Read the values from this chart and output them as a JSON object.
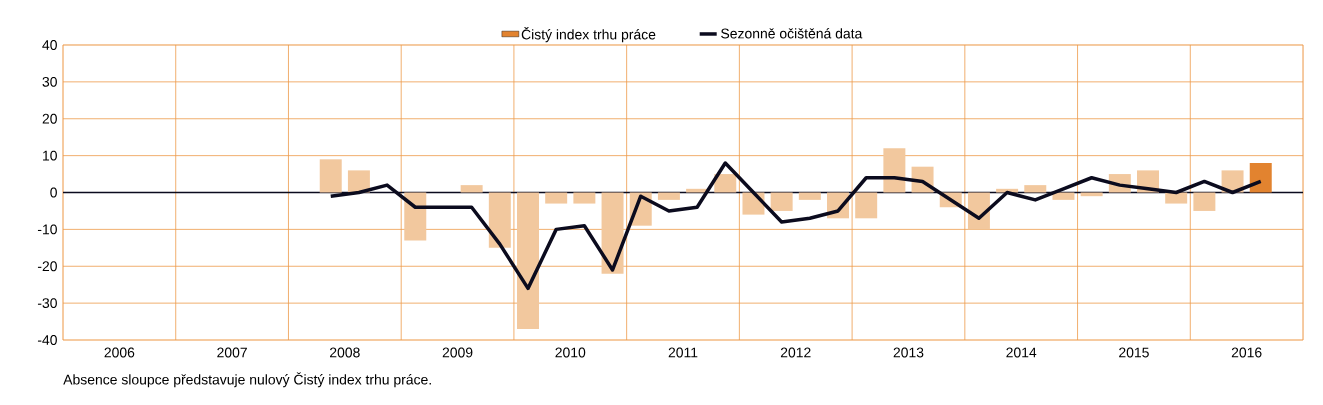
{
  "chart_data": {
    "type": "bar",
    "x": [
      2008.375,
      2008.625,
      2008.875,
      2009.125,
      2009.375,
      2009.625,
      2009.875,
      2010.125,
      2010.375,
      2010.625,
      2010.875,
      2011.125,
      2011.375,
      2011.625,
      2011.875,
      2012.125,
      2012.375,
      2012.625,
      2012.875,
      2013.125,
      2013.375,
      2013.625,
      2013.875,
      2014.125,
      2014.375,
      2014.625,
      2014.875,
      2015.125,
      2015.375,
      2015.625,
      2015.875,
      2016.125,
      2016.375,
      2016.625
    ],
    "series": [
      {
        "name": "Čistý index trhu práce",
        "color": "#e2832f",
        "colors": [
          "#f2c89e",
          "#f2c89e",
          "#f2c89e",
          "#f2c89e",
          "#f2c89e",
          "#f2c89e",
          "#f2c89e",
          "#f2c89e",
          "#f2c89e",
          "#f2c89e",
          "#f2c89e",
          "#f2c89e",
          "#f2c89e",
          "#f2c89e",
          "#f2c89e",
          "#f2c89e",
          "#f2c89e",
          "#f2c89e",
          "#f2c89e",
          "#f2c89e",
          "#f2c89e",
          "#f2c89e",
          "#f2c89e",
          "#f2c89e",
          "#f2c89e",
          "#f2c89e",
          "#f2c89e",
          "#f2c89e",
          "#f2c89e",
          "#f2c89e",
          "#f2c89e",
          "#f2c89e",
          "#f2c89e",
          "#e2832f"
        ],
        "values": [
          9,
          6,
          0,
          -13,
          0,
          2,
          -15,
          -37,
          -3,
          -3,
          -22,
          -9,
          -2,
          1,
          5,
          -6,
          -5,
          -2,
          -7,
          -7,
          12,
          7,
          -4,
          -10,
          1,
          2,
          -2,
          -1,
          5,
          6,
          -3,
          -5,
          6,
          8
        ]
      },
      {
        "name": "Sezonně očištěná data",
        "type": "line",
        "color": "#0b0b1e",
        "values": [
          -1,
          0,
          2,
          -4,
          -4,
          -4,
          -14,
          -26,
          -10,
          -9,
          -21,
          -1,
          -5,
          -4,
          8,
          0,
          -8,
          -7,
          -5,
          4,
          4,
          3,
          -2,
          -7,
          0,
          -2,
          1,
          4,
          2,
          1,
          0,
          3,
          0,
          3
        ]
      }
    ],
    "xlim": [
      2006,
      2017
    ],
    "xticks": [
      {
        "value": 2006.5,
        "label": "2006"
      },
      {
        "value": 2007.5,
        "label": "2007"
      },
      {
        "value": 2008.5,
        "label": "2008"
      },
      {
        "value": 2009.5,
        "label": "2009"
      },
      {
        "value": 2010.5,
        "label": "2010"
      },
      {
        "value": 2011.5,
        "label": "2011"
      },
      {
        "value": 2012.5,
        "label": "2012"
      },
      {
        "value": 2013.5,
        "label": "2013"
      },
      {
        "value": 2014.5,
        "label": "2014"
      },
      {
        "value": 2015.5,
        "label": "2015"
      },
      {
        "value": 2016.5,
        "label": "2016"
      }
    ],
    "ylim": [
      -40,
      40
    ],
    "yticks": [
      -40,
      -30,
      -20,
      -10,
      0,
      10,
      20,
      30,
      40
    ],
    "grid": true,
    "legend": "top",
    "ref_lines": [
      {
        "axis": "y",
        "value": 0,
        "color": "#0b0b1e"
      }
    ],
    "annotations": [
      "Absence sloupce představuje nulový Čistý index trhu práce."
    ]
  }
}
